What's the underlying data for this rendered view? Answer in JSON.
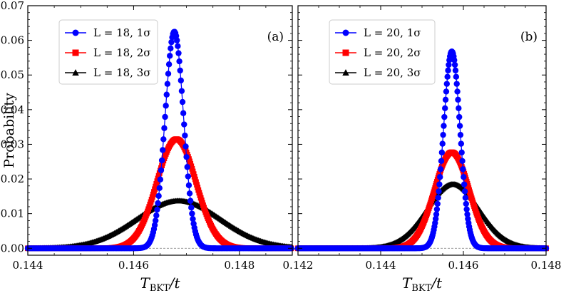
{
  "chart_data": [
    {
      "type": "line",
      "panel_label": "(a)",
      "xlim": [
        0.144,
        0.149
      ],
      "ylim": [
        -0.002,
        0.07
      ],
      "xticks": [
        "0.144",
        "0.146",
        "0.148"
      ],
      "xtick_values": [
        0.144,
        0.146,
        0.148
      ],
      "yticks": [
        "0.00",
        "0.01",
        "0.02",
        "0.03",
        "0.04",
        "0.05",
        "0.06",
        "0.07"
      ],
      "ytick_values": [
        0.0,
        0.01,
        0.02,
        0.03,
        0.04,
        0.05,
        0.06,
        0.07
      ],
      "ylabel": "Probability",
      "xlabel": "T_BKT/t",
      "legend_position": "top-left",
      "series": [
        {
          "name": "L = 18, 1σ",
          "color": "#0000ff",
          "marker": "circle",
          "mu": 0.14677,
          "sigma": 0.000175,
          "peak": 0.0625
        },
        {
          "name": "L = 18, 2σ",
          "color": "#ff0000",
          "marker": "square",
          "mu": 0.14681,
          "sigma": 0.00037,
          "peak": 0.0315
        },
        {
          "name": "L = 18, 3σ",
          "color": "#000000",
          "marker": "triangle",
          "mu": 0.14685,
          "sigma": 0.0008,
          "peak": 0.0137
        }
      ]
    },
    {
      "type": "line",
      "panel_label": "(b)",
      "xlim": [
        0.142,
        0.148
      ],
      "ylim": [
        -0.002,
        0.07
      ],
      "xticks": [
        "0.142",
        "0.144",
        "0.146",
        "0.148"
      ],
      "xtick_values": [
        0.142,
        0.144,
        0.146,
        0.148
      ],
      "yticks": [],
      "ytick_values": [
        0.0,
        0.01,
        0.02,
        0.03,
        0.04,
        0.05,
        0.06,
        0.07
      ],
      "ylabel": "",
      "xlabel": "T_BKT/t",
      "legend_position": "top-left",
      "series": [
        {
          "name": "L = 20, 1σ",
          "color": "#0000ff",
          "marker": "circle",
          "mu": 0.14572,
          "sigma": 0.0002,
          "peak": 0.0568
        },
        {
          "name": "L = 20, 2σ",
          "color": "#ff0000",
          "marker": "square",
          "mu": 0.14572,
          "sigma": 0.00042,
          "peak": 0.0277
        },
        {
          "name": "L = 20, 3σ",
          "color": "#000000",
          "marker": "triangle",
          "mu": 0.14575,
          "sigma": 0.00063,
          "peak": 0.0185
        }
      ]
    }
  ]
}
